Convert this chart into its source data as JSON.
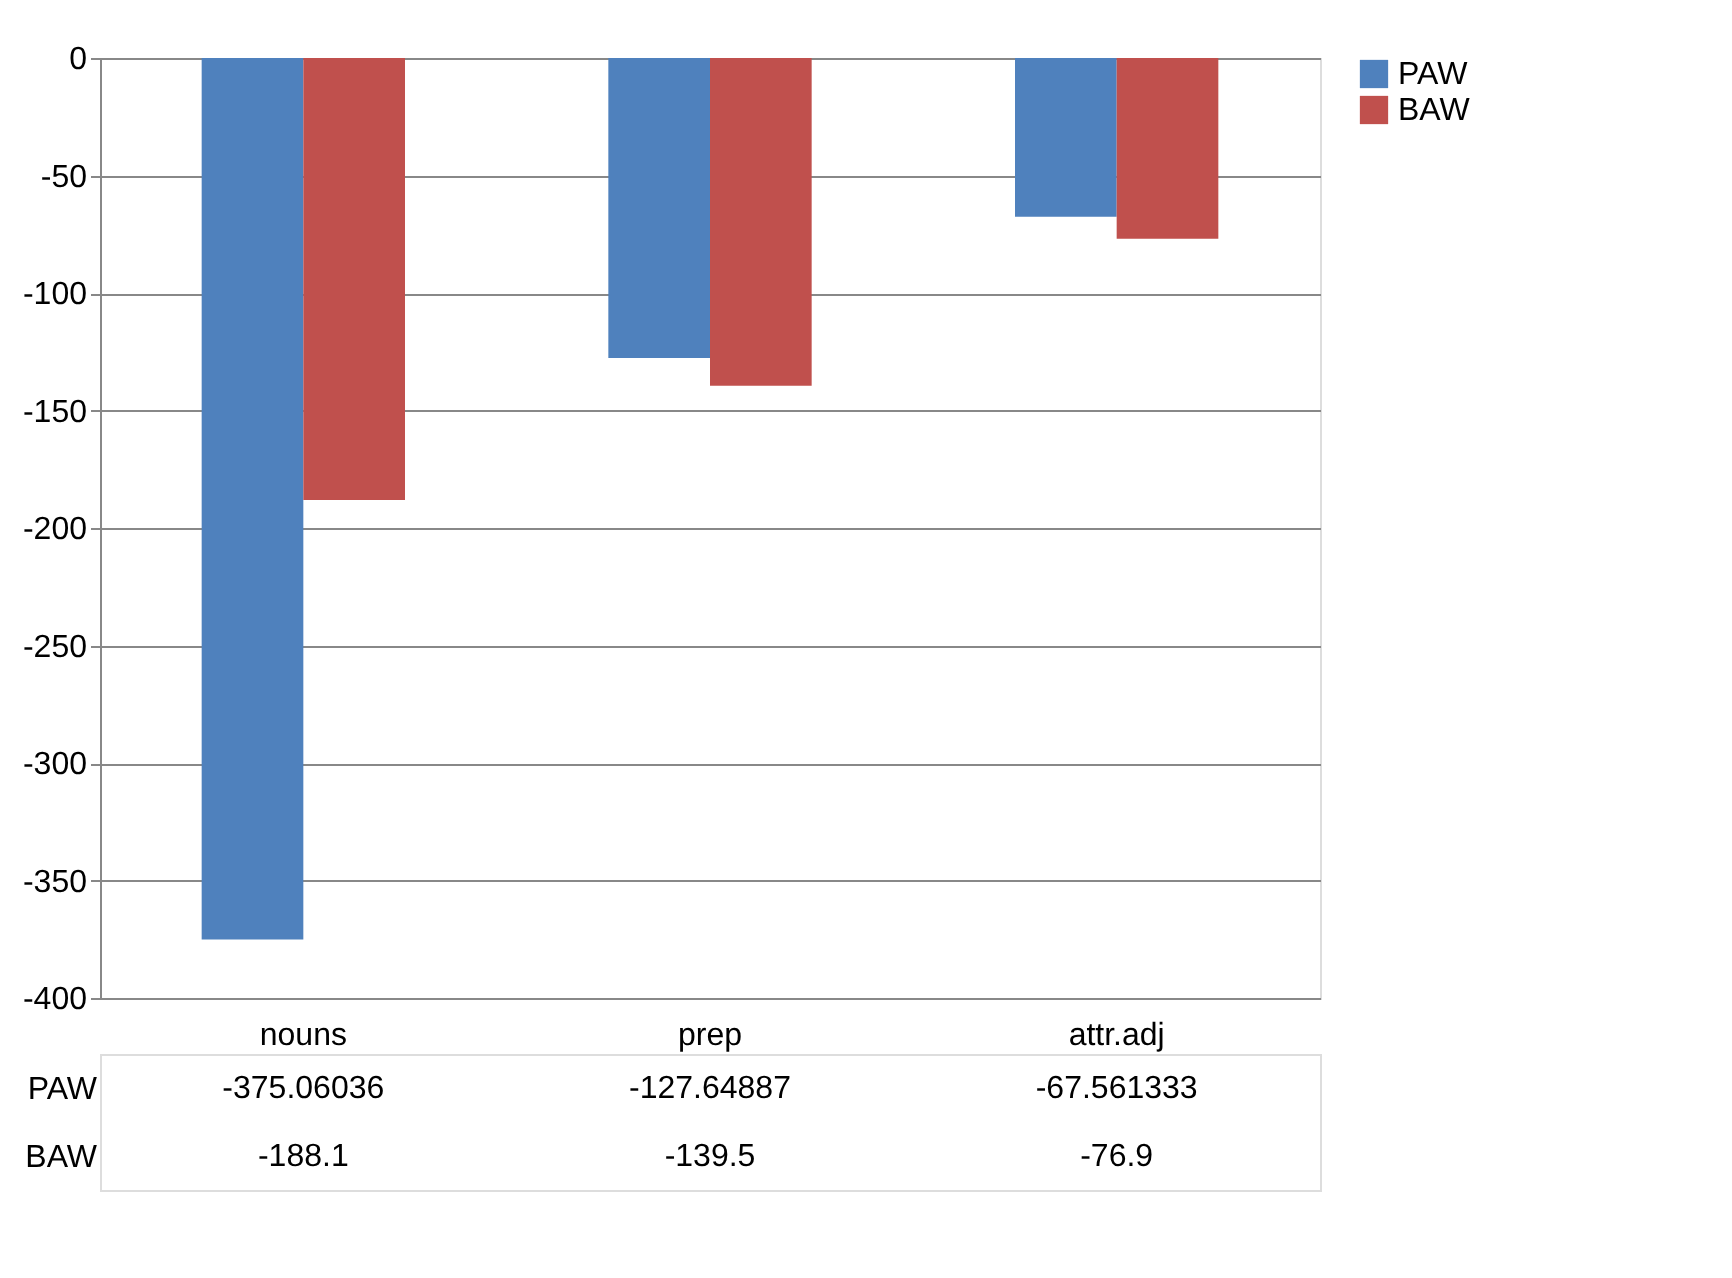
{
  "chart_data": {
    "type": "bar",
    "categories": [
      "nouns",
      "prep",
      "attr.adj"
    ],
    "series": [
      {
        "name": "PAW",
        "color": "#4f81bd",
        "values": [
          -375.06036,
          -127.64887,
          -67.561333
        ]
      },
      {
        "name": "BAW",
        "color": "#c0504d",
        "values": [
          -188.1,
          -139.5,
          -76.9
        ]
      }
    ],
    "ylim": [
      -400,
      0
    ],
    "yticks": [
      -400,
      -350,
      -300,
      -250,
      -200,
      -150,
      -100,
      -50,
      0
    ],
    "grid": "y",
    "legend": "right",
    "data_labels": true
  }
}
